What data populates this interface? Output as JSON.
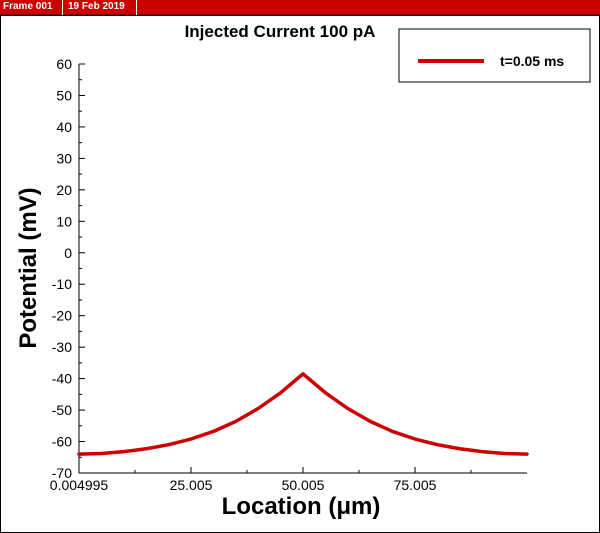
{
  "frame": {
    "label": "Frame 001",
    "date": "19 Feb 2019"
  },
  "colors": {
    "series": "#cc0000",
    "frame_bar": "#cc0000"
  },
  "chart_data": {
    "type": "line",
    "title": "Injected Current 100 pA",
    "xlabel": "Location (μm)",
    "ylabel": "Potential (mV)",
    "xlim": [
      0.004995,
      100
    ],
    "ylim": [
      -70,
      60
    ],
    "x_ticks": [
      0.004995,
      25.005,
      50.005,
      75.005
    ],
    "x_tick_labels": [
      "0.004995",
      "25.005",
      "50.005",
      "75.005"
    ],
    "y_ticks": [
      60,
      50,
      40,
      30,
      20,
      10,
      0,
      -10,
      -20,
      -30,
      -40,
      -50,
      -60,
      -70
    ],
    "grid": false,
    "legend": "top-right",
    "series": [
      {
        "name": "t=0.05 ms",
        "x": [
          0.004995,
          5,
          10,
          15,
          20,
          25,
          30,
          35,
          40,
          45,
          50.005,
          55,
          60,
          65,
          70,
          75,
          80,
          85,
          90,
          95,
          100
        ],
        "y": [
          -64.0,
          -63.8,
          -63.2,
          -62.3,
          -61.0,
          -59.2,
          -56.8,
          -53.6,
          -49.5,
          -44.5,
          -38.5,
          -44.5,
          -49.5,
          -53.6,
          -56.8,
          -59.2,
          -61.0,
          -62.3,
          -63.2,
          -63.8,
          -64.0
        ]
      }
    ]
  }
}
